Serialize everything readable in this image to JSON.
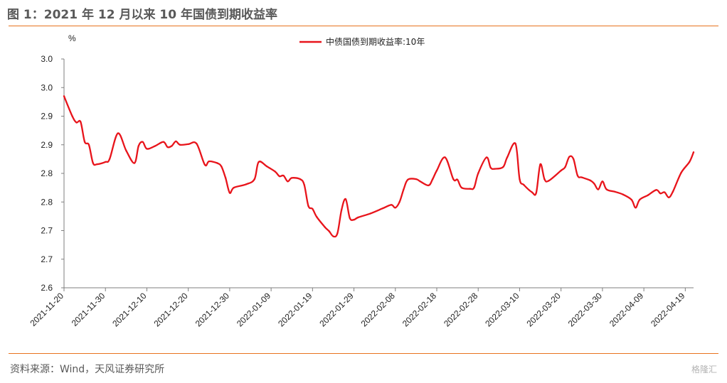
{
  "figure": {
    "title": "图 1：2021 年 12 月以来 10 年国债到期收益率",
    "source": "资料来源：Wind，天风证券研究所",
    "watermark": "格隆汇"
  },
  "chart_data": {
    "type": "line",
    "ylabel": "%",
    "ylim": [
      2.6,
      3.0
    ],
    "y_tick_labels": [
      "2.6",
      "2.7",
      "2.7",
      "2.8",
      "2.8",
      "2.9",
      "2.9",
      "3.0",
      "3.0"
    ],
    "x_tick_labels": [
      "2021-11-20",
      "2021-11-30",
      "2021-12-10",
      "2021-12-20",
      "2021-12-30",
      "2022-01-09",
      "2022-01-19",
      "2022-01-29",
      "2022-02-08",
      "2022-02-18",
      "2022-02-28",
      "2022-03-10",
      "2022-03-20",
      "2022-03-30",
      "2022-04-09",
      "2022-04-19"
    ],
    "legend_position": "top",
    "grid": false,
    "series": [
      {
        "name": "中债国债到期收益率:10年",
        "color": "#E8141B",
        "points": [
          [
            "2021-11-20",
            2.935
          ],
          [
            "2021-11-22",
            2.9
          ],
          [
            "2021-11-23",
            2.889
          ],
          [
            "2021-11-24",
            2.89
          ],
          [
            "2021-11-25",
            2.855
          ],
          [
            "2021-11-26",
            2.85
          ],
          [
            "2021-11-27",
            2.818
          ],
          [
            "2021-11-28",
            2.816
          ],
          [
            "2021-11-30",
            2.82
          ],
          [
            "2021-12-01",
            2.825
          ],
          [
            "2021-12-03",
            2.87
          ],
          [
            "2021-12-05",
            2.84
          ],
          [
            "2021-12-07",
            2.818
          ],
          [
            "2021-12-08",
            2.848
          ],
          [
            "2021-12-09",
            2.855
          ],
          [
            "2021-12-10",
            2.843
          ],
          [
            "2021-12-12",
            2.848
          ],
          [
            "2021-12-14",
            2.855
          ],
          [
            "2021-12-15",
            2.846
          ],
          [
            "2021-12-16",
            2.848
          ],
          [
            "2021-12-17",
            2.856
          ],
          [
            "2021-12-18",
            2.85
          ],
          [
            "2021-12-20",
            2.851
          ],
          [
            "2021-12-22",
            2.852
          ],
          [
            "2021-12-24",
            2.815
          ],
          [
            "2021-12-25",
            2.821
          ],
          [
            "2021-12-27",
            2.818
          ],
          [
            "2021-12-28",
            2.812
          ],
          [
            "2021-12-29",
            2.792
          ],
          [
            "2021-12-30",
            2.766
          ],
          [
            "2021-12-31",
            2.775
          ],
          [
            "2022-01-03",
            2.781
          ],
          [
            "2022-01-05",
            2.79
          ],
          [
            "2022-01-06",
            2.82
          ],
          [
            "2022-01-08",
            2.812
          ],
          [
            "2022-01-10",
            2.803
          ],
          [
            "2022-01-11",
            2.795
          ],
          [
            "2022-01-12",
            2.796
          ],
          [
            "2022-01-13",
            2.786
          ],
          [
            "2022-01-14",
            2.792
          ],
          [
            "2022-01-16",
            2.79
          ],
          [
            "2022-01-17",
            2.78
          ],
          [
            "2022-01-18",
            2.743
          ],
          [
            "2022-01-19",
            2.738
          ],
          [
            "2022-01-20",
            2.724
          ],
          [
            "2022-01-22",
            2.706
          ],
          [
            "2022-01-23",
            2.699
          ],
          [
            "2022-01-24",
            2.69
          ],
          [
            "2022-01-25",
            2.695
          ],
          [
            "2022-01-26",
            2.736
          ],
          [
            "2022-01-27",
            2.755
          ],
          [
            "2022-01-28",
            2.722
          ],
          [
            "2022-01-29",
            2.719
          ],
          [
            "2022-01-30",
            2.723
          ],
          [
            "2022-02-02",
            2.73
          ],
          [
            "2022-02-05",
            2.739
          ],
          [
            "2022-02-07",
            2.745
          ],
          [
            "2022-02-08",
            2.74
          ],
          [
            "2022-02-09",
            2.75
          ],
          [
            "2022-02-10",
            2.772
          ],
          [
            "2022-02-11",
            2.789
          ],
          [
            "2022-02-13",
            2.79
          ],
          [
            "2022-02-14",
            2.786
          ],
          [
            "2022-02-16",
            2.779
          ],
          [
            "2022-02-17",
            2.79
          ],
          [
            "2022-02-18",
            2.805
          ],
          [
            "2022-02-20",
            2.828
          ],
          [
            "2022-02-22",
            2.79
          ],
          [
            "2022-02-23",
            2.789
          ],
          [
            "2022-02-24",
            2.775
          ],
          [
            "2022-02-26",
            2.773
          ],
          [
            "2022-02-27",
            2.775
          ],
          [
            "2022-02-28",
            2.8
          ],
          [
            "2022-03-02",
            2.828
          ],
          [
            "2022-03-03",
            2.81
          ],
          [
            "2022-03-04",
            2.808
          ],
          [
            "2022-03-06",
            2.811
          ],
          [
            "2022-03-07",
            2.828
          ],
          [
            "2022-03-09",
            2.852
          ],
          [
            "2022-03-10",
            2.79
          ],
          [
            "2022-03-11",
            2.78
          ],
          [
            "2022-03-13",
            2.767
          ],
          [
            "2022-03-14",
            2.766
          ],
          [
            "2022-03-15",
            2.816
          ],
          [
            "2022-03-16",
            2.79
          ],
          [
            "2022-03-17",
            2.787
          ],
          [
            "2022-03-20",
            2.805
          ],
          [
            "2022-03-21",
            2.811
          ],
          [
            "2022-03-22",
            2.829
          ],
          [
            "2022-03-23",
            2.825
          ],
          [
            "2022-03-24",
            2.796
          ],
          [
            "2022-03-25",
            2.793
          ],
          [
            "2022-03-27",
            2.788
          ],
          [
            "2022-03-28",
            2.782
          ],
          [
            "2022-03-29",
            2.772
          ],
          [
            "2022-03-30",
            2.786
          ],
          [
            "2022-03-31",
            2.772
          ],
          [
            "2022-04-02",
            2.768
          ],
          [
            "2022-04-04",
            2.763
          ],
          [
            "2022-04-06",
            2.754
          ],
          [
            "2022-04-07",
            2.74
          ],
          [
            "2022-04-08",
            2.754
          ],
          [
            "2022-04-10",
            2.762
          ],
          [
            "2022-04-12",
            2.771
          ],
          [
            "2022-04-13",
            2.765
          ],
          [
            "2022-04-14",
            2.767
          ],
          [
            "2022-04-15",
            2.758
          ],
          [
            "2022-04-16",
            2.768
          ],
          [
            "2022-04-18",
            2.801
          ],
          [
            "2022-04-20",
            2.82
          ],
          [
            "2022-04-21",
            2.837
          ]
        ]
      }
    ]
  }
}
